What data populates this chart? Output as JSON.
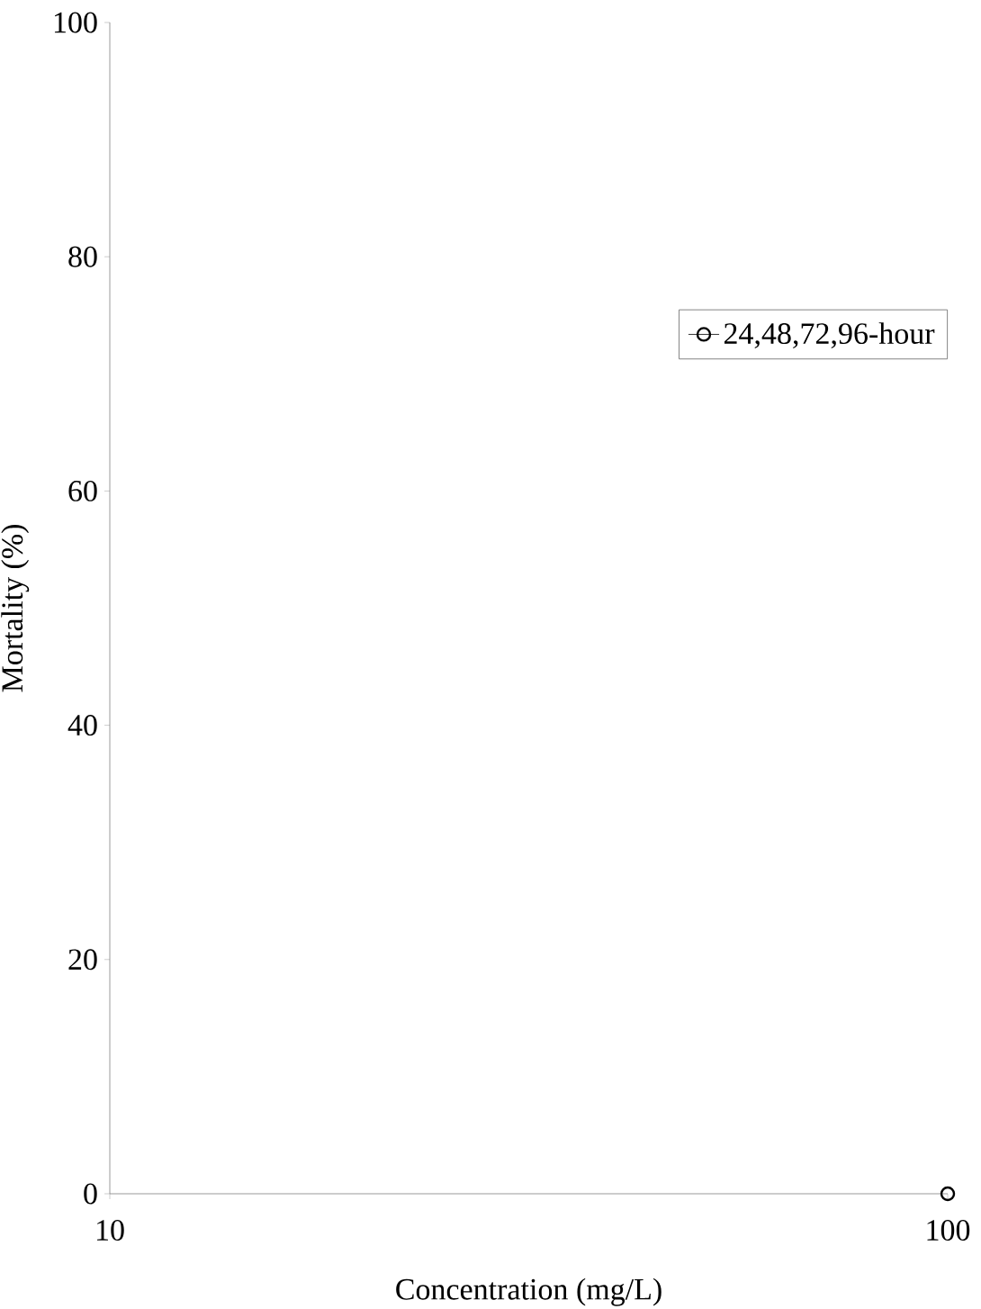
{
  "chart_data": {
    "type": "line",
    "xlabel": "Concentration (mg/L)",
    "ylabel": "Mortality (%)",
    "x": [
      100
    ],
    "series": [
      {
        "name": "24,48,72,96-hour",
        "color": "#000000",
        "values": [
          0
        ]
      }
    ],
    "log": "x",
    "xlim": [
      10,
      100
    ],
    "xticks": [
      10,
      100
    ],
    "ylim": [
      0,
      100
    ],
    "yticks": [
      0,
      20,
      40,
      60,
      80,
      100
    ],
    "legend": "top right",
    "marker": "circle",
    "line_style": "solid",
    "grid": false
  }
}
